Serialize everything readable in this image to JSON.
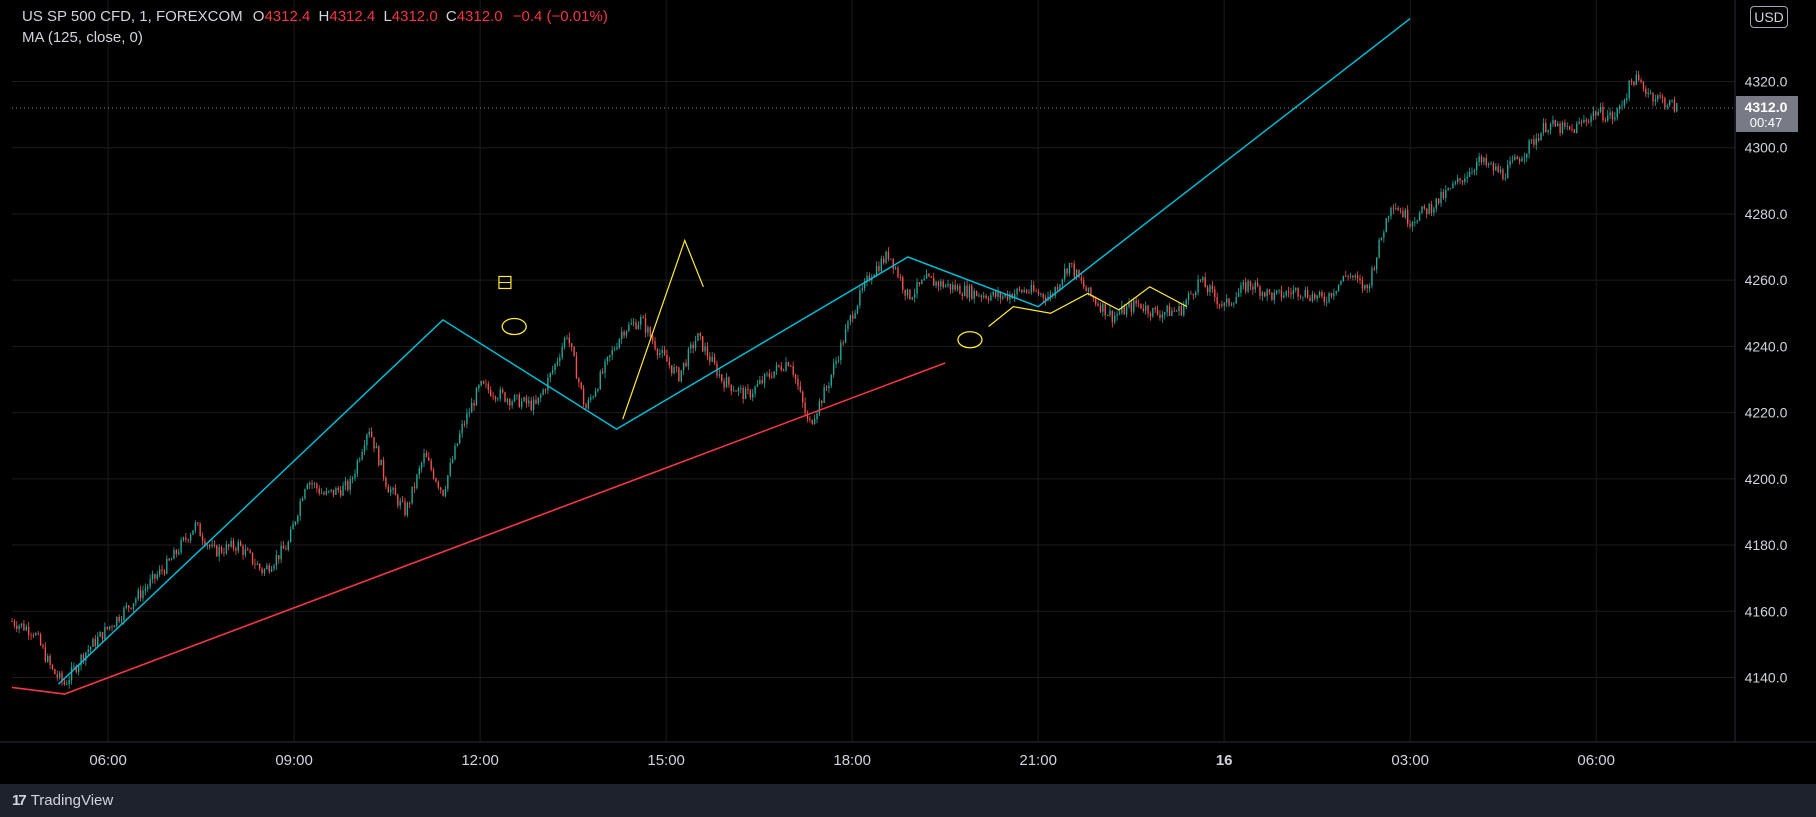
{
  "legend": {
    "symbol": "US SP 500 CFD, 1, FOREXCOM",
    "o_label": "O",
    "o": "4312.4",
    "h_label": "H",
    "h": "4312.4",
    "l_label": "L",
    "l": "4312.0",
    "c_label": "C",
    "c": "4312.0",
    "change": "−0.4 (−0.01%)",
    "indicator": "MA (125, close, 0)"
  },
  "currency_button": "USD",
  "last_price": {
    "price": "4312.0",
    "countdown": "00:47"
  },
  "footer": {
    "brand": "TradingView"
  },
  "colors": {
    "background": "#000000",
    "up": "#26a69a",
    "down": "#ef5350",
    "trendline_cyan": "#00bcd4",
    "trendline_red": "#f23645",
    "annotation_yellow": "#ffeb3b",
    "last_price_bg": "#787b86"
  },
  "chart_data": {
    "type": "candlestick",
    "title": "",
    "y_ticks": [
      4140,
      4160,
      4180,
      4200,
      4220,
      4240,
      4260,
      4280,
      4300,
      4320
    ],
    "y_tick_labels": [
      "4140.0",
      "4160.0",
      "4180.0",
      "4200.0",
      "4220.0",
      "4240.0",
      "4260.0",
      "4280.0",
      "4300.0",
      "4320.0"
    ],
    "ylim": [
      4120,
      4330
    ],
    "x_ticks": [
      6,
      9,
      12,
      15,
      18,
      21,
      24,
      27,
      30
    ],
    "x_tick_labels": [
      "06:00",
      "09:00",
      "12:00",
      "15:00",
      "18:00",
      "21:00",
      "16",
      "03:00",
      "06:00"
    ],
    "xlim": [
      4.45,
      31.4
    ],
    "price_path": [
      [
        4.45,
        4157
      ],
      [
        4.8,
        4154
      ],
      [
        5.1,
        4142
      ],
      [
        5.3,
        4138
      ],
      [
        5.6,
        4147
      ],
      [
        6.0,
        4155
      ],
      [
        6.5,
        4165
      ],
      [
        7.0,
        4175
      ],
      [
        7.4,
        4186
      ],
      [
        7.7,
        4178
      ],
      [
        8.1,
        4180
      ],
      [
        8.5,
        4172
      ],
      [
        8.9,
        4180
      ],
      [
        9.2,
        4200
      ],
      [
        9.5,
        4195
      ],
      [
        9.9,
        4198
      ],
      [
        10.2,
        4216
      ],
      [
        10.5,
        4198
      ],
      [
        10.8,
        4190
      ],
      [
        11.1,
        4207
      ],
      [
        11.4,
        4196
      ],
      [
        11.7,
        4215
      ],
      [
        12.0,
        4228
      ],
      [
        12.5,
        4224
      ],
      [
        12.9,
        4222
      ],
      [
        13.2,
        4234
      ],
      [
        13.4,
        4244
      ],
      [
        13.7,
        4221
      ],
      [
        14.0,
        4233
      ],
      [
        14.3,
        4245
      ],
      [
        14.6,
        4248
      ],
      [
        14.9,
        4238
      ],
      [
        15.2,
        4231
      ],
      [
        15.5,
        4243
      ],
      [
        15.9,
        4230
      ],
      [
        16.3,
        4225
      ],
      [
        16.7,
        4232
      ],
      [
        17.0,
        4236
      ],
      [
        17.3,
        4216
      ],
      [
        17.6,
        4228
      ],
      [
        18.0,
        4250
      ],
      [
        18.3,
        4262
      ],
      [
        18.6,
        4268
      ],
      [
        18.9,
        4255
      ],
      [
        19.2,
        4260
      ],
      [
        19.6,
        4258
      ],
      [
        20.0,
        4256
      ],
      [
        20.4,
        4255
      ],
      [
        20.8,
        4257
      ],
      [
        21.2,
        4255
      ],
      [
        21.5,
        4265
      ],
      [
        21.8,
        4256
      ],
      [
        22.2,
        4249
      ],
      [
        22.6,
        4253
      ],
      [
        22.9,
        4250
      ],
      [
        23.3,
        4251
      ],
      [
        23.6,
        4260
      ],
      [
        24.0,
        4252
      ],
      [
        24.4,
        4259
      ],
      [
        24.8,
        4255
      ],
      [
        25.2,
        4257
      ],
      [
        25.6,
        4254
      ],
      [
        26.0,
        4262
      ],
      [
        26.3,
        4257
      ],
      [
        26.7,
        4284
      ],
      [
        27.0,
        4278
      ],
      [
        27.4,
        4283
      ],
      [
        27.8,
        4290
      ],
      [
        28.1,
        4296
      ],
      [
        28.5,
        4292
      ],
      [
        28.9,
        4300
      ],
      [
        29.2,
        4307
      ],
      [
        29.6,
        4305
      ],
      [
        30.0,
        4311
      ],
      [
        30.3,
        4309
      ],
      [
        30.6,
        4321
      ],
      [
        30.9,
        4316
      ],
      [
        31.1,
        4314
      ],
      [
        31.3,
        4312
      ]
    ],
    "annotations": {
      "cyan_zigzag": [
        [
          5.2,
          4138
        ],
        [
          11.4,
          4248
        ],
        [
          14.2,
          4215
        ],
        [
          18.9,
          4267
        ],
        [
          21.0,
          4252
        ],
        [
          27.0,
          4339
        ]
      ],
      "red_line": [
        [
          4.45,
          4137
        ],
        [
          5.3,
          4135
        ],
        [
          19.5,
          4235
        ]
      ],
      "yellow_zigzag_1": [
        [
          14.3,
          4218
        ],
        [
          15.3,
          4272
        ],
        [
          15.6,
          4258
        ]
      ],
      "yellow_zigzag_2": [
        [
          20.2,
          4246
        ],
        [
          20.6,
          4252
        ],
        [
          21.2,
          4250
        ],
        [
          21.8,
          4256
        ],
        [
          22.3,
          4251
        ],
        [
          22.8,
          4258
        ],
        [
          23.4,
          4252
        ]
      ],
      "ellipses": [
        [
          12.55,
          4246
        ],
        [
          19.9,
          4242
        ]
      ],
      "glyph": {
        "x": 12.4,
        "y": 4259
      }
    }
  }
}
